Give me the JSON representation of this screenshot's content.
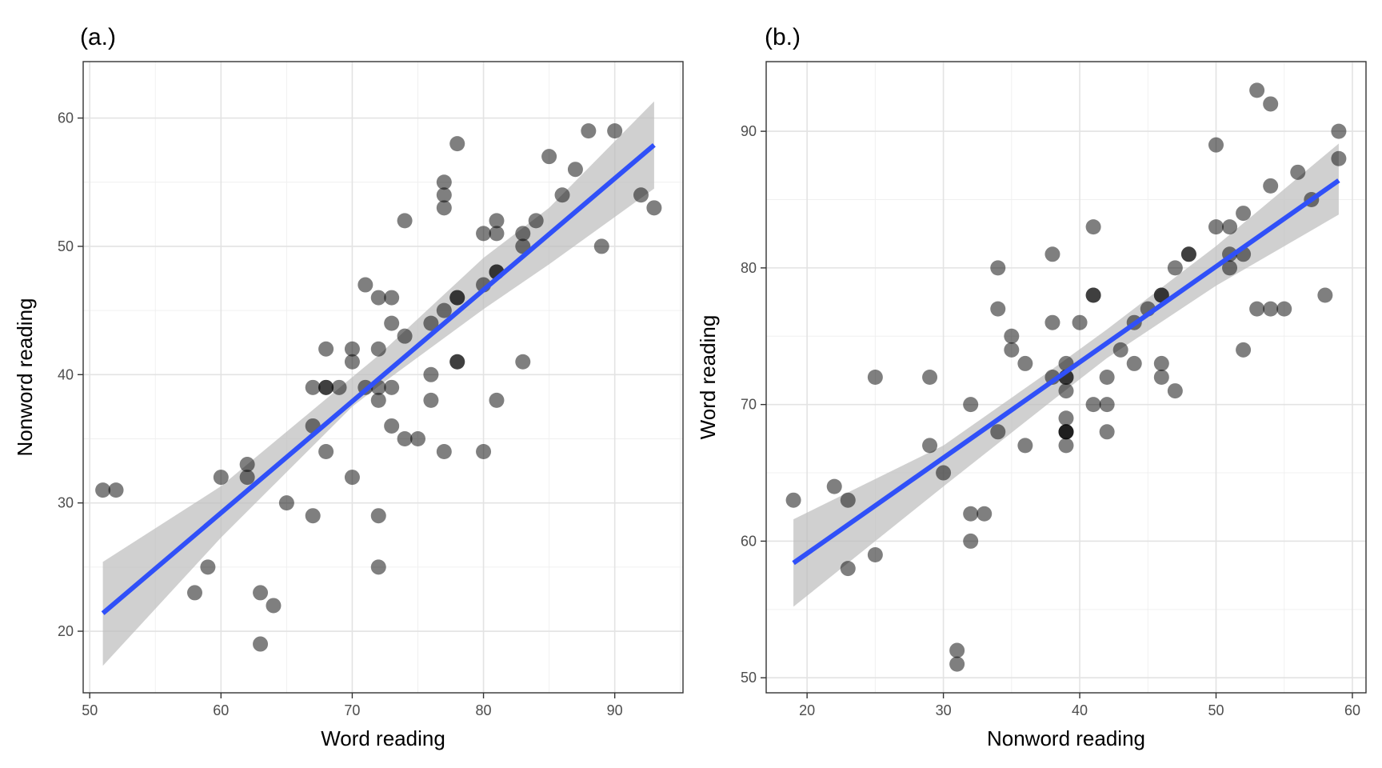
{
  "chart_data": [
    {
      "type": "scatter",
      "panel_label": "(a.)",
      "xlabel": "Word reading",
      "ylabel": "Nonword reading",
      "xlim": [
        49.5,
        95.2
      ],
      "ylim": [
        15.2,
        64.4
      ],
      "xticks": [
        50,
        60,
        70,
        80,
        90
      ],
      "yticks": [
        20,
        30,
        40,
        50,
        60
      ],
      "grid": true,
      "points": [
        [
          51,
          31
        ],
        [
          52,
          31
        ],
        [
          58,
          23
        ],
        [
          59,
          25
        ],
        [
          60,
          32
        ],
        [
          62,
          33
        ],
        [
          62,
          32
        ],
        [
          63,
          23
        ],
        [
          63,
          19
        ],
        [
          64,
          22
        ],
        [
          65,
          30
        ],
        [
          67,
          36
        ],
        [
          67,
          29
        ],
        [
          67,
          39
        ],
        [
          68,
          39
        ],
        [
          68,
          39
        ],
        [
          68,
          42
        ],
        [
          68,
          34
        ],
        [
          69,
          39
        ],
        [
          70,
          42
        ],
        [
          70,
          41
        ],
        [
          70,
          32
        ],
        [
          71,
          47
        ],
        [
          71,
          39
        ],
        [
          72,
          46
        ],
        [
          72,
          42
        ],
        [
          72,
          39
        ],
        [
          72,
          38
        ],
        [
          72,
          29
        ],
        [
          72,
          25
        ],
        [
          73,
          46
        ],
        [
          73,
          44
        ],
        [
          73,
          39
        ],
        [
          73,
          36
        ],
        [
          74,
          43
        ],
        [
          74,
          52
        ],
        [
          74,
          35
        ],
        [
          75,
          35
        ],
        [
          76,
          44
        ],
        [
          76,
          40
        ],
        [
          76,
          38
        ],
        [
          77,
          55
        ],
        [
          77,
          54
        ],
        [
          77,
          53
        ],
        [
          77,
          45
        ],
        [
          77,
          34
        ],
        [
          78,
          58
        ],
        [
          78,
          46
        ],
        [
          78,
          46
        ],
        [
          78,
          41
        ],
        [
          78,
          41
        ],
        [
          80,
          51
        ],
        [
          80,
          47
        ],
        [
          80,
          34
        ],
        [
          81,
          52
        ],
        [
          81,
          51
        ],
        [
          81,
          48
        ],
        [
          81,
          48
        ],
        [
          81,
          38
        ],
        [
          83,
          51
        ],
        [
          83,
          50
        ],
        [
          83,
          41
        ],
        [
          84,
          52
        ],
        [
          85,
          57
        ],
        [
          86,
          54
        ],
        [
          87,
          56
        ],
        [
          88,
          59
        ],
        [
          89,
          50
        ],
        [
          90,
          59
        ],
        [
          92,
          54
        ],
        [
          93,
          53
        ]
      ],
      "fit": {
        "x": [
          51,
          93
        ],
        "y": [
          21.4,
          57.9
        ]
      },
      "confidence_band": {
        "x": [
          51,
          60,
          70,
          72,
          80,
          85,
          93
        ],
        "lower": [
          17.3,
          27.3,
          37.5,
          39.1,
          45.1,
          48.6,
          54.5
        ],
        "upper": [
          25.4,
          31.3,
          39.8,
          41.5,
          49.1,
          53.0,
          61.3
        ]
      },
      "colors": {
        "point": "#000000",
        "point_opacity": 0.5,
        "fit": "#3050F8",
        "band": "#bebebe"
      }
    },
    {
      "type": "scatter",
      "panel_label": "(b.)",
      "xlabel": "Nonword reading",
      "ylabel": "Word reading",
      "xlim": [
        17.0,
        61.0
      ],
      "ylim": [
        48.9,
        95.1
      ],
      "xticks": [
        20,
        30,
        40,
        50,
        60
      ],
      "yticks": [
        50,
        60,
        70,
        80,
        90
      ],
      "grid": true,
      "points": [
        [
          19,
          63
        ],
        [
          22,
          64
        ],
        [
          23,
          63
        ],
        [
          23,
          58
        ],
        [
          25,
          72
        ],
        [
          25,
          59
        ],
        [
          29,
          72
        ],
        [
          29,
          67
        ],
        [
          30,
          65
        ],
        [
          31,
          52
        ],
        [
          31,
          51
        ],
        [
          32,
          70
        ],
        [
          32,
          62
        ],
        [
          32,
          60
        ],
        [
          33,
          62
        ],
        [
          34,
          80
        ],
        [
          34,
          77
        ],
        [
          34,
          68
        ],
        [
          35,
          75
        ],
        [
          35,
          74
        ],
        [
          36,
          73
        ],
        [
          36,
          67
        ],
        [
          38,
          81
        ],
        [
          38,
          76
        ],
        [
          38,
          72
        ],
        [
          39,
          73
        ],
        [
          39,
          72
        ],
        [
          39,
          72
        ],
        [
          39,
          71
        ],
        [
          39,
          69
        ],
        [
          39,
          68
        ],
        [
          39,
          68
        ],
        [
          39,
          68
        ],
        [
          39,
          67
        ],
        [
          40,
          76
        ],
        [
          41,
          83
        ],
        [
          41,
          78
        ],
        [
          41,
          78
        ],
        [
          41,
          70
        ],
        [
          42,
          72
        ],
        [
          42,
          70
        ],
        [
          42,
          68
        ],
        [
          43,
          74
        ],
        [
          44,
          76
        ],
        [
          44,
          73
        ],
        [
          45,
          77
        ],
        [
          46,
          78
        ],
        [
          46,
          78
        ],
        [
          46,
          73
        ],
        [
          46,
          72
        ],
        [
          47,
          80
        ],
        [
          47,
          71
        ],
        [
          48,
          81
        ],
        [
          48,
          81
        ],
        [
          50,
          89
        ],
        [
          50,
          83
        ],
        [
          51,
          83
        ],
        [
          51,
          81
        ],
        [
          51,
          80
        ],
        [
          52,
          84
        ],
        [
          52,
          81
        ],
        [
          52,
          74
        ],
        [
          53,
          93
        ],
        [
          53,
          77
        ],
        [
          54,
          92
        ],
        [
          54,
          86
        ],
        [
          54,
          77
        ],
        [
          55,
          77
        ],
        [
          56,
          87
        ],
        [
          57,
          85
        ],
        [
          58,
          78
        ],
        [
          59,
          90
        ],
        [
          59,
          88
        ]
      ],
      "fit": {
        "x": [
          19,
          59
        ],
        "y": [
          58.4,
          86.4
        ]
      },
      "confidence_band": {
        "x": [
          19,
          30,
          38,
          42,
          50,
          59
        ],
        "lower": [
          55.2,
          64.0,
          70.3,
          73.4,
          78.7,
          83.9
        ],
        "upper": [
          61.6,
          67.0,
          72.6,
          75.5,
          81.6,
          89.1
        ]
      },
      "colors": {
        "point": "#000000",
        "point_opacity": 0.5,
        "fit": "#3050F8",
        "band": "#bebebe"
      }
    }
  ]
}
